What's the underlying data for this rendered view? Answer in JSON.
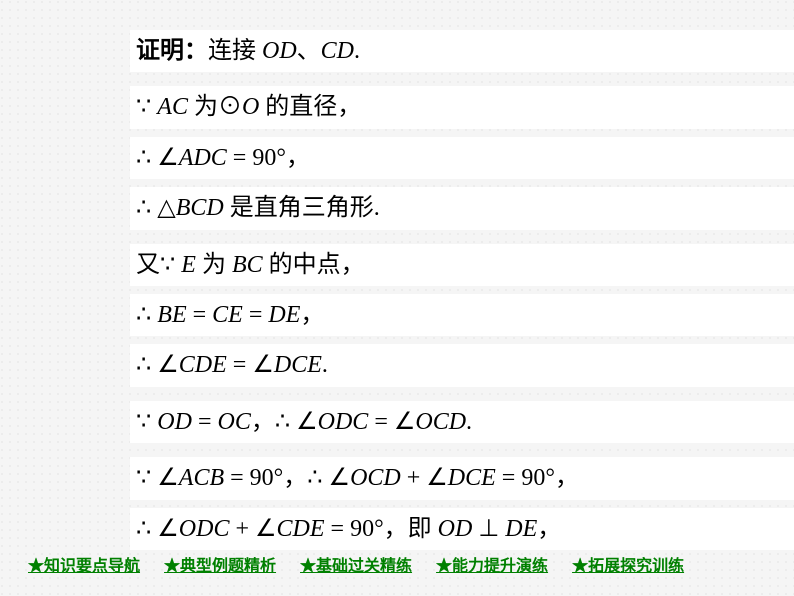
{
  "proof": {
    "lines": [
      {
        "html": "<span class='bold cn'>证明：</span><span class='cn'>连接 </span><span class='it'>OD</span><span class='cn'>、</span><span class='it'>CD</span><span class='cn'>.</span>"
      },
      {
        "html": "<span class='sym'>∵ </span><span class='it'>AC</span><span class='cn'> 为⊙</span><span class='it'>O</span><span class='cn'> 的直径，</span>"
      },
      {
        "html": "<span class='sym'>∴ ∠</span><span class='it'>ADC</span><span class='sym'> = 90°</span><span class='cn'>，</span>"
      },
      {
        "html": "<span class='sym'>∴ △</span><span class='it'>BCD</span><span class='cn'> 是直角三角形.</span>"
      },
      {
        "html": "<span class='cn'>又</span><span class='sym'>∵ </span><span class='it'>E</span><span class='cn'> 为 </span><span class='it'>BC</span><span class='cn'> 的中点，</span>"
      },
      {
        "html": "<span class='sym'>∴ </span><span class='it'>BE</span><span class='sym'> = </span><span class='it'>CE</span><span class='sym'> = </span><span class='it'>DE</span><span class='cn'>，</span>"
      },
      {
        "html": "<span class='sym'>∴ ∠</span><span class='it'>CDE</span><span class='sym'> = ∠</span><span class='it'>DCE</span><span class='cn'>.</span>"
      },
      {
        "html": "<span class='sym'>∵ </span><span class='it'>OD</span><span class='sym'> = </span><span class='it'>OC</span><span class='cn'>，</span><span class='sym'>∴ ∠</span><span class='it'>ODC</span><span class='sym'> = ∠</span><span class='it'>OCD</span><span class='cn'>.</span>"
      },
      {
        "html": "<span class='sym'>∵ ∠</span><span class='it'>ACB</span><span class='sym'> = 90°</span><span class='cn'>，</span><span class='sym'>∴ ∠</span><span class='it'>OCD</span><span class='sym'> + ∠</span><span class='it'>DCE</span><span class='sym'> = 90°</span><span class='cn'>，</span>"
      },
      {
        "html": "<span class='sym'>∴ ∠</span><span class='it'>ODC</span><span class='sym'> + ∠</span><span class='it'>CDE</span><span class='sym'> = 90°</span><span class='cn'>，即 </span><span class='it'>OD</span><span class='sym'> ⊥ </span><span class='it'>DE</span><span class='cn'>，</span>"
      }
    ]
  },
  "footer": {
    "links": [
      "★知识要点导航",
      "★典型例题精析",
      "★基础过关精练",
      "★能力提升演练",
      "★拓展探究训练"
    ]
  },
  "style": {
    "fg": "#000000",
    "bg": "#ffffff",
    "link_color": "#008000",
    "page_bg": "#f5f5f5",
    "font_size_body": 24,
    "font_size_footer": 16
  }
}
